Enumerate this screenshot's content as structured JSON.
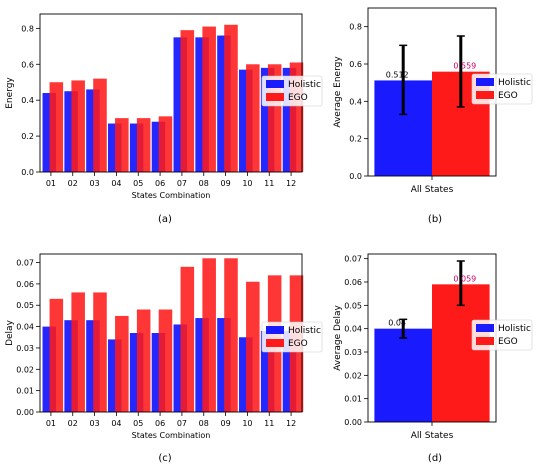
{
  "colors": {
    "holistic": "#1a1aff",
    "ego": "#ff1a1a",
    "errbar": "#000000",
    "ego_value_label": "#cc0066"
  },
  "chart_data": [
    {
      "id": "a",
      "panel_label": "(a)",
      "type": "bar",
      "xlabel": "States Combination",
      "ylabel": "Energy",
      "ylim": [
        0,
        0.88
      ],
      "yticks": [
        "0.0",
        "0.2",
        "0.4",
        "0.6",
        "0.8"
      ],
      "ytick_values": [
        0,
        0.2,
        0.4,
        0.6,
        0.8
      ],
      "categories": [
        "01",
        "02",
        "03",
        "04",
        "05",
        "06",
        "07",
        "08",
        "09",
        "10",
        "11",
        "12"
      ],
      "series": [
        {
          "name": "Holistic",
          "values": [
            0.44,
            0.45,
            0.46,
            0.27,
            0.27,
            0.28,
            0.75,
            0.75,
            0.76,
            0.57,
            0.58,
            0.58
          ]
        },
        {
          "name": "EGO",
          "values": [
            0.5,
            0.51,
            0.52,
            0.3,
            0.3,
            0.31,
            0.79,
            0.81,
            0.82,
            0.6,
            0.6,
            0.61
          ]
        }
      ],
      "legend": {
        "position": "right",
        "entries": [
          "Holistic",
          "EGO"
        ]
      }
    },
    {
      "id": "b",
      "panel_label": "(b)",
      "type": "bar",
      "xlabel": "",
      "ylabel": "Average Energy",
      "ylim": [
        0,
        0.9
      ],
      "yticks": [
        "0.0",
        "0.2",
        "0.4",
        "0.6",
        "0.8"
      ],
      "ytick_values": [
        0,
        0.2,
        0.4,
        0.6,
        0.8
      ],
      "categories": [
        "All States"
      ],
      "series": [
        {
          "name": "Holistic",
          "values": [
            0.512
          ],
          "value_label": "0.512",
          "error": [
            0.33,
            0.7
          ]
        },
        {
          "name": "EGO",
          "values": [
            0.559
          ],
          "value_label": "0.559",
          "error": [
            0.37,
            0.75
          ]
        }
      ],
      "legend": {
        "position": "right",
        "entries": [
          "Holistic",
          "EGO"
        ]
      }
    },
    {
      "id": "c",
      "panel_label": "(c)",
      "type": "bar",
      "xlabel": "States Combination",
      "ylabel": "Delay",
      "ylim": [
        0,
        0.074
      ],
      "yticks": [
        "0.00",
        "0.01",
        "0.02",
        "0.03",
        "0.04",
        "0.05",
        "0.06",
        "0.07"
      ],
      "ytick_values": [
        0,
        0.01,
        0.02,
        0.03,
        0.04,
        0.05,
        0.06,
        0.07
      ],
      "categories": [
        "01",
        "02",
        "03",
        "04",
        "05",
        "06",
        "07",
        "08",
        "09",
        "10",
        "11",
        "12"
      ],
      "series": [
        {
          "name": "Holistic",
          "values": [
            0.04,
            0.043,
            0.043,
            0.034,
            0.037,
            0.037,
            0.041,
            0.044,
            0.044,
            0.035,
            0.038,
            0.038
          ]
        },
        {
          "name": "EGO",
          "values": [
            0.053,
            0.056,
            0.056,
            0.045,
            0.048,
            0.048,
            0.068,
            0.072,
            0.072,
            0.061,
            0.064,
            0.064
          ]
        }
      ],
      "legend": {
        "position": "right",
        "entries": [
          "Holistic",
          "EGO"
        ]
      }
    },
    {
      "id": "d",
      "panel_label": "(d)",
      "type": "bar",
      "xlabel": "",
      "ylabel": "Average Delay",
      "ylim": [
        0,
        0.072
      ],
      "yticks": [
        "0.00",
        "0.01",
        "0.02",
        "0.03",
        "0.04",
        "0.05",
        "0.06",
        "0.07"
      ],
      "ytick_values": [
        0,
        0.01,
        0.02,
        0.03,
        0.04,
        0.05,
        0.06,
        0.07
      ],
      "categories": [
        "All States"
      ],
      "series": [
        {
          "name": "Holistic",
          "values": [
            0.04
          ],
          "value_label": "0.04",
          "error": [
            0.036,
            0.044
          ]
        },
        {
          "name": "EGO",
          "values": [
            0.059
          ],
          "value_label": "0.059",
          "error": [
            0.05,
            0.069
          ]
        }
      ],
      "legend": {
        "position": "right",
        "entries": [
          "Holistic",
          "EGO"
        ]
      }
    }
  ]
}
